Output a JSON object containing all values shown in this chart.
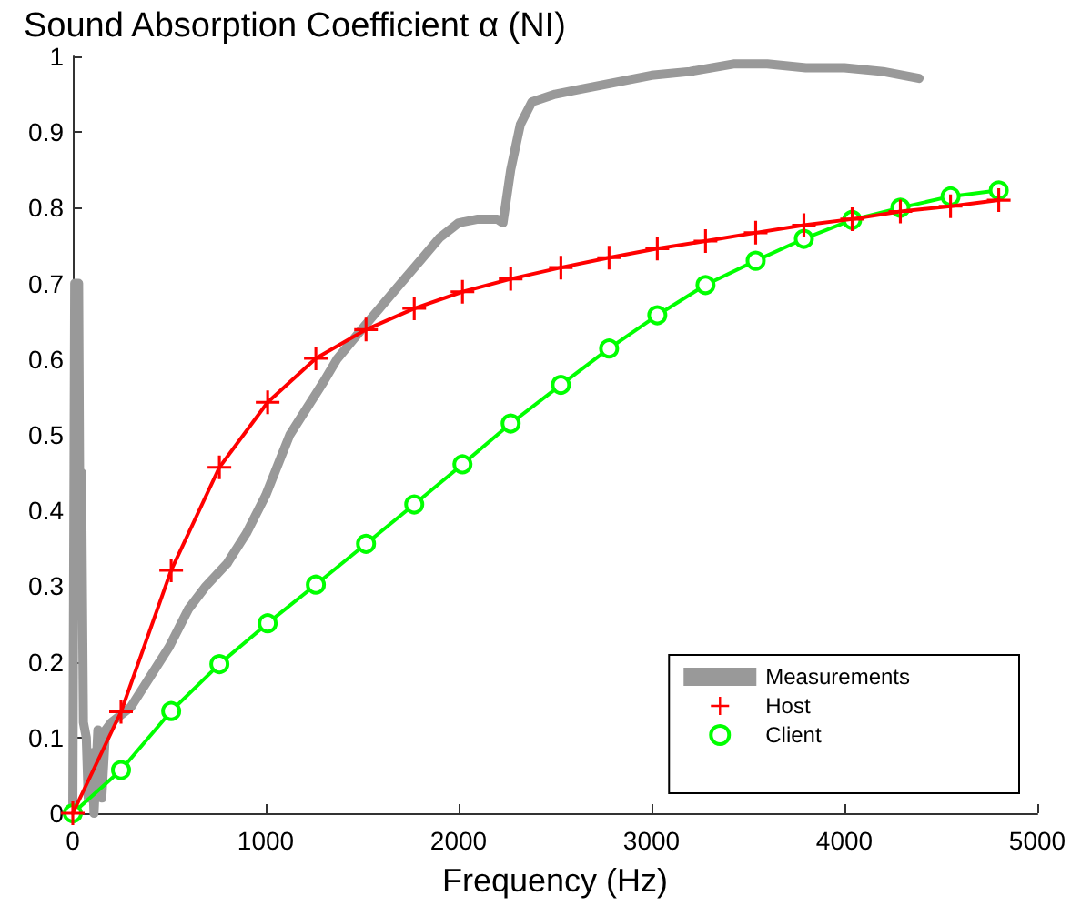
{
  "chart_data": {
    "type": "line",
    "title": "Sound Absorption Coefficient α (NI)",
    "xlabel": "Frequency (Hz)",
    "xlim": [
      0,
      5000
    ],
    "xticks": [
      0,
      1000,
      2000,
      3000,
      4000,
      5000
    ],
    "ylim": [
      0,
      1
    ],
    "yticks": [
      0,
      0.1,
      0.2,
      0.3,
      0.4,
      0.5,
      0.6,
      0.7,
      0.8,
      0.9,
      1
    ],
    "grid": false,
    "legend": "bottom right",
    "line_style": "solid",
    "series": [
      {
        "name": "Measurements",
        "color": "#999999",
        "marker": "none",
        "x": [
          0,
          10,
          30,
          35,
          45,
          55,
          70,
          80,
          100,
          110,
          130,
          150,
          170,
          200,
          250,
          300,
          400,
          500,
          600,
          690,
          800,
          900,
          1000,
          1125,
          1200,
          1300,
          1370,
          1500,
          1600,
          1700,
          1800,
          1900,
          2000,
          2100,
          2200,
          2230,
          2270,
          2320,
          2380,
          2500,
          2600,
          2800,
          3000,
          3200,
          3425,
          3600,
          3800,
          4000,
          4200,
          4387
        ],
        "values": [
          0,
          0.7,
          0.7,
          0.45,
          0.45,
          0.12,
          0.1,
          0.02,
          0.08,
          0,
          0.11,
          0.02,
          0.11,
          0.12,
          0.13,
          0.14,
          0.18,
          0.22,
          0.27,
          0.3,
          0.33,
          0.37,
          0.42,
          0.5,
          0.53,
          0.57,
          0.6,
          0.64,
          0.67,
          0.7,
          0.73,
          0.76,
          0.78,
          0.785,
          0.785,
          0.78,
          0.85,
          0.91,
          0.94,
          0.95,
          0.955,
          0.965,
          0.975,
          0.98,
          0.99,
          0.99,
          0.985,
          0.985,
          0.98,
          0.971
        ]
      },
      {
        "name": "Host",
        "color": "#ff0000",
        "marker": "cross",
        "x": [
          0,
          250,
          510,
          760,
          1010,
          1260,
          1520,
          1770,
          2020,
          2270,
          2530,
          2780,
          3030,
          3280,
          3540,
          3790,
          4040,
          4290,
          4550,
          4800
        ],
        "values": [
          0,
          0.134,
          0.321,
          0.457,
          0.543,
          0.601,
          0.639,
          0.667,
          0.689,
          0.706,
          0.721,
          0.734,
          0.746,
          0.756,
          0.767,
          0.777,
          0.785,
          0.795,
          0.802,
          0.81
        ]
      },
      {
        "name": "Client",
        "color": "#00ff00",
        "marker": "circle",
        "x": [
          0,
          250,
          510,
          760,
          1010,
          1260,
          1520,
          1770,
          2020,
          2270,
          2530,
          2780,
          3030,
          3280,
          3540,
          3790,
          4040,
          4290,
          4550,
          4800
        ],
        "values": [
          0,
          0.057,
          0.135,
          0.197,
          0.251,
          0.302,
          0.356,
          0.408,
          0.461,
          0.515,
          0.566,
          0.614,
          0.658,
          0.698,
          0.73,
          0.759,
          0.784,
          0.8,
          0.815,
          0.823
        ]
      }
    ]
  }
}
